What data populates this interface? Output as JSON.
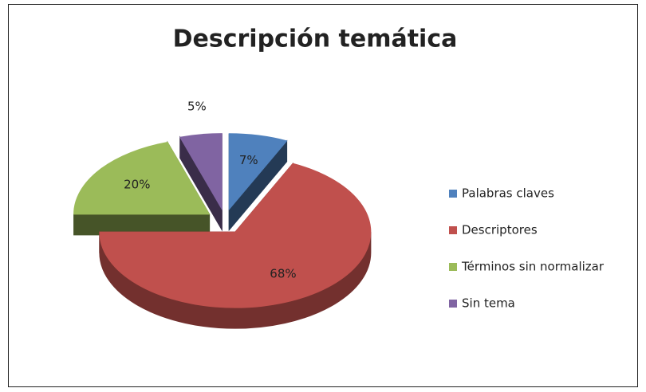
{
  "chart_data": {
    "type": "pie",
    "title": "Descripción temática",
    "categories": [
      "Palabras claves",
      "Descriptores",
      "Términos sin normalizar",
      "Sin tema"
    ],
    "values": [
      7,
      68,
      20,
      5
    ],
    "value_labels": [
      "7%",
      "68%",
      "20%",
      "5%"
    ],
    "colors": [
      "#4f81bd",
      "#c0504d",
      "#9bbb59",
      "#8064a2"
    ],
    "legend": "right"
  }
}
